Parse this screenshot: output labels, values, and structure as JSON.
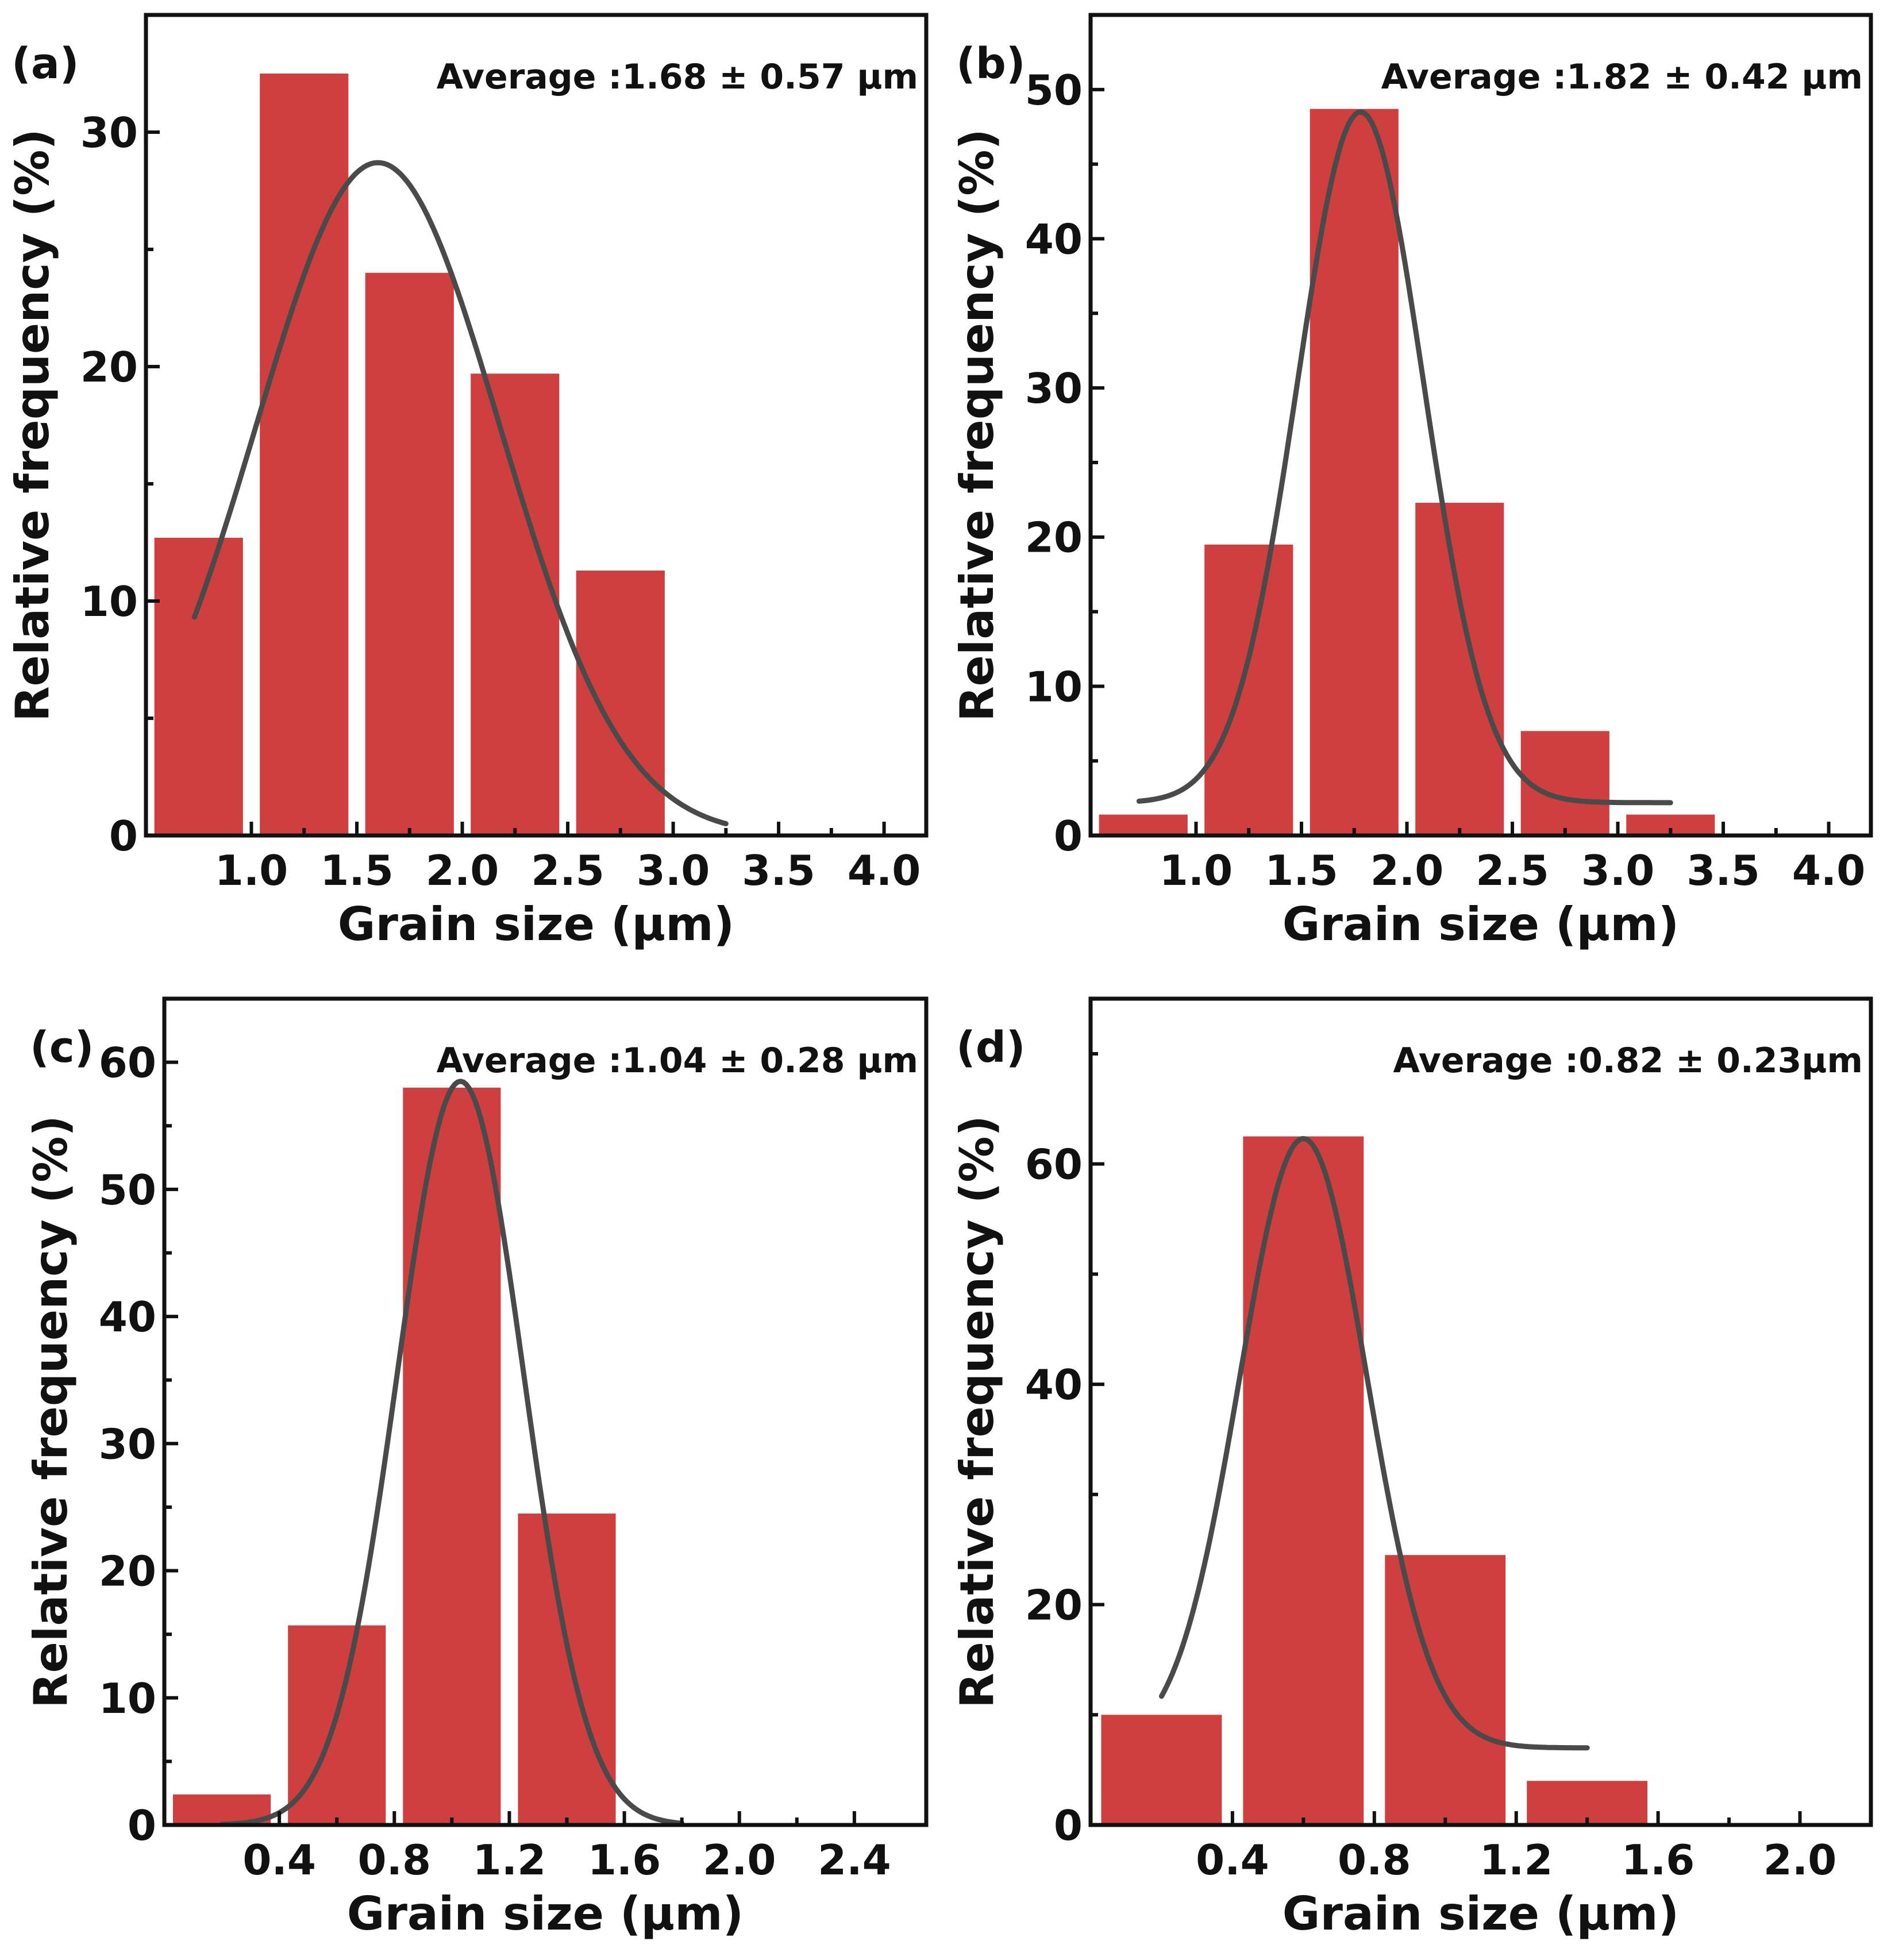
{
  "colors": {
    "bar": "#d03f3f",
    "fit_curve": "#4a4a4a",
    "axis": "#111111"
  },
  "chart_data": [
    {
      "type": "bar",
      "panel_label": "(a)",
      "annotation": "Average :1.68 ± 0.57 μm",
      "xlabel": "Grain size (μm)",
      "ylabel": "Relative frequency (%)",
      "xlim": [
        0.5,
        4.2
      ],
      "ylim": [
        0,
        35
      ],
      "xticks": [
        1.0,
        1.5,
        2.0,
        2.5,
        3.0,
        3.5,
        4.0
      ],
      "xtick_labels": [
        "1.0",
        "1.5",
        "2.0",
        "2.5",
        "3.0",
        "3.5",
        "4.0"
      ],
      "yticks": [
        0,
        10,
        20,
        30
      ],
      "ytick_labels": [
        "0",
        "10",
        "20",
        "30"
      ],
      "bar_width": 0.42,
      "categories": [
        0.75,
        1.25,
        1.75,
        2.25,
        2.75
      ],
      "values": [
        12.7,
        32.5,
        24.0,
        19.7,
        11.3
      ],
      "fit": {
        "mean": 1.6,
        "sigma": 0.58,
        "peak": 28.7,
        "xmin": 0.73,
        "xmax": 3.25
      }
    },
    {
      "type": "bar",
      "panel_label": "(b)",
      "annotation": "Average :1.82 ± 0.42 μm",
      "xlabel": "Grain size (μm)",
      "ylabel": "Relative frequency (%)",
      "xlim": [
        0.5,
        4.2
      ],
      "ylim": [
        0,
        55
      ],
      "xticks": [
        1.0,
        1.5,
        2.0,
        2.5,
        3.0,
        3.5,
        4.0
      ],
      "xtick_labels": [
        "1.0",
        "1.5",
        "2.0",
        "2.5",
        "3.0",
        "3.5",
        "4.0"
      ],
      "yticks": [
        0,
        10,
        20,
        30,
        40,
        50
      ],
      "ytick_labels": [
        "0",
        "10",
        "20",
        "30",
        "40",
        "50"
      ],
      "bar_width": 0.42,
      "categories": [
        0.75,
        1.25,
        1.75,
        2.25,
        2.75,
        3.25
      ],
      "values": [
        1.4,
        19.5,
        48.7,
        22.3,
        7.0,
        1.4
      ],
      "fit": {
        "mean": 1.78,
        "sigma": 0.3,
        "peak": 46.3,
        "offset": 2.2,
        "xmin": 0.73,
        "xmax": 3.25
      }
    },
    {
      "type": "bar",
      "panel_label": "(c)",
      "annotation": "Average :1.04 ± 0.28 μm",
      "xlabel": "Grain size (μm)",
      "ylabel": "Relative frequency (%)",
      "xlim": [
        0.0,
        2.65
      ],
      "ylim": [
        0,
        65
      ],
      "xticks": [
        0.4,
        0.8,
        1.2,
        1.6,
        2.0,
        2.4
      ],
      "xtick_labels": [
        "0.4",
        "0.8",
        "1.2",
        "1.6",
        "2.0",
        "2.4"
      ],
      "yticks": [
        0,
        10,
        20,
        30,
        40,
        50,
        60
      ],
      "ytick_labels": [
        "0",
        "10",
        "20",
        "30",
        "40",
        "50",
        "60"
      ],
      "bar_width": 0.34,
      "categories": [
        0.2,
        0.6,
        1.0,
        1.4
      ],
      "values": [
        2.4,
        15.7,
        58.0,
        24.5
      ],
      "fit": {
        "mean": 1.03,
        "sigma": 0.22,
        "peak": 58.5,
        "xmin": 0.2,
        "xmax": 1.8
      }
    },
    {
      "type": "bar",
      "panel_label": "(d)",
      "annotation": "Average :0.82 ± 0.23μm",
      "xlabel": "Grain size (μm)",
      "ylabel": "Relative frequency (%)",
      "xlim": [
        0.0,
        2.2
      ],
      "ylim": [
        0,
        75
      ],
      "xticks": [
        0.4,
        0.8,
        1.2,
        1.6,
        2.0
      ],
      "xtick_labels": [
        "0.4",
        "0.8",
        "1.2",
        "1.6",
        "2.0"
      ],
      "yticks": [
        20,
        40,
        60
      ],
      "ytick_labels": [
        "20",
        "40",
        "60"
      ],
      "y_minor_ticks": [
        0,
        10,
        30,
        50,
        70
      ],
      "zero_label": "0",
      "bar_width": 0.34,
      "categories": [
        0.2,
        0.6,
        1.0,
        1.4
      ],
      "values": [
        10.0,
        62.5,
        24.5,
        4.0
      ],
      "fit": {
        "mean": 0.6,
        "sigma": 0.18,
        "peak": 55.3,
        "offset": 7.0,
        "xmin": 0.2,
        "xmax": 1.4
      }
    }
  ]
}
